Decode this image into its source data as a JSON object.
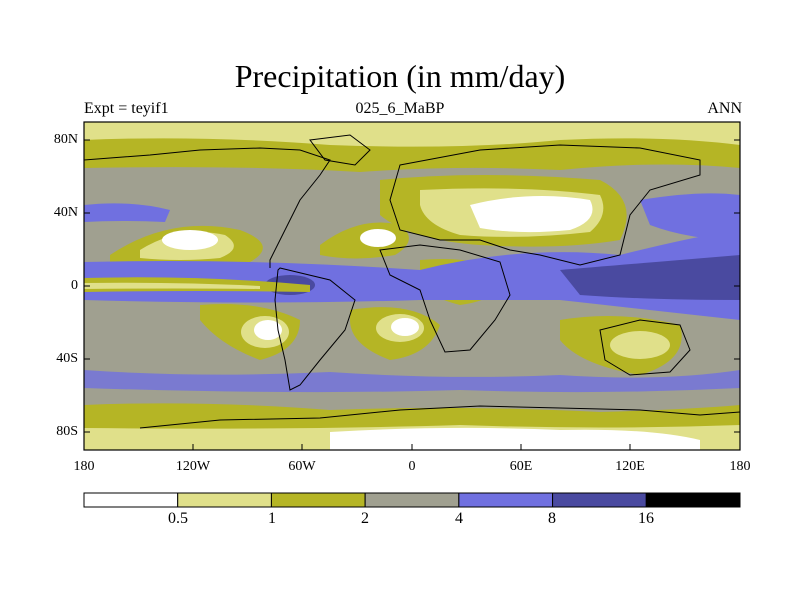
{
  "title": "Precipitation (in mm/day)",
  "subtitle_left": "Expt = teyif1",
  "subtitle_center": "025_6_MaBP",
  "subtitle_right": "ANN",
  "lat_labels": [
    "80N",
    "40N",
    "0",
    "40S",
    "80S"
  ],
  "lon_labels": [
    "180",
    "120W",
    "60W",
    "0",
    "60E",
    "120E",
    "180"
  ],
  "colorbar": {
    "labels": [
      "0.5",
      "1",
      "2",
      "4",
      "8",
      "16"
    ],
    "colors": [
      "#ffffff",
      "#e0e08a",
      "#b5b525",
      "#a0a090",
      "#7070e0",
      "#4a4aa0",
      "#000000"
    ]
  }
}
